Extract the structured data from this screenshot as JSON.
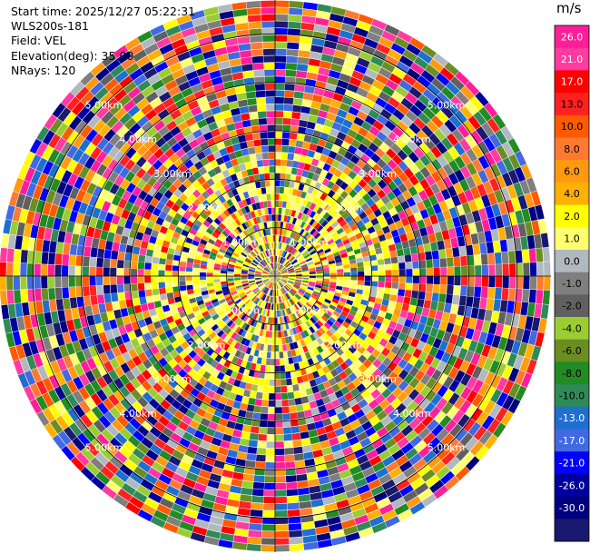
{
  "header": {
    "start_time": "Start time: 2025/12/27 05:22:31",
    "site": "WLS200s-181",
    "field": "Field: VEL",
    "elevation": "Elevation(deg): 35.00",
    "nrays": "NRays: 120"
  },
  "colorbar": {
    "unit": "m/s",
    "labels": [
      "26.0",
      "21.0",
      "17.0",
      "13.0",
      "10.0",
      "8.0",
      "6.0",
      "4.0",
      "2.0",
      "1.0",
      "0.0",
      "-1.0",
      "-2.0",
      "-4.0",
      "-6.0",
      "-8.0",
      "-10.0",
      "-13.0",
      "-17.0",
      "-21.0",
      "-26.0",
      "-30.0"
    ],
    "colors": [
      "#ff1e9a",
      "#ff3aa0",
      "#ff0000",
      "#ff2020",
      "#ff5a00",
      "#ff7a30",
      "#ff9a10",
      "#ffb000",
      "#ffff00",
      "#ffff70",
      "#b0b8c0",
      "#7f7f7f",
      "#606060",
      "#9acd32",
      "#6b8e23",
      "#228b22",
      "#2e8b57",
      "#1e6fd0",
      "#4169e1",
      "#0000ff",
      "#0000a0",
      "#000080",
      "#191970"
    ]
  },
  "chart_data": {
    "type": "heatmap",
    "projection": "polar-ppi",
    "field": "VEL",
    "units": "m/s",
    "nrays": 120,
    "elevation_deg": 35.0,
    "range_ring_labels_km": [
      "1.00km",
      "2.00km",
      "3.00km",
      "4.00km",
      "5.00km"
    ],
    "range_rings_km": [
      1,
      2,
      3,
      4,
      5
    ],
    "max_range_km": 5.7,
    "color_scale": [
      -30,
      -26,
      -21,
      -17,
      -13,
      -10,
      -8,
      -6,
      -4,
      -2,
      -1,
      0,
      1,
      2,
      4,
      6,
      8,
      10,
      13,
      17,
      21,
      26
    ]
  }
}
